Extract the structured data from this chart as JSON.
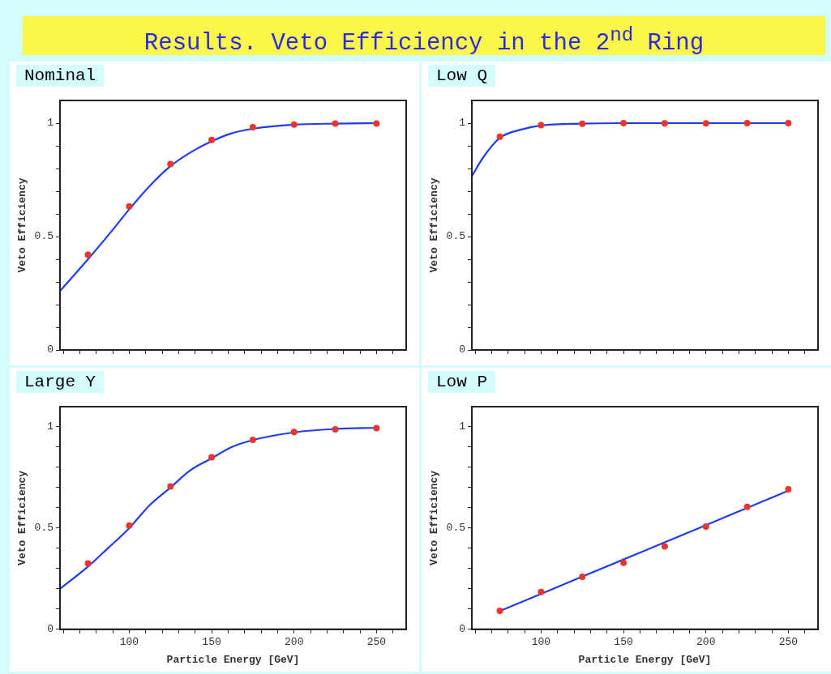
{
  "chart_data": [
    {
      "type": "scatter",
      "title": "Nominal",
      "ylabel": "Veto Efficiency",
      "annotations": [
        "Results. Veto Efficiency in the 2$^{nd}$ Ring"
      ],
      "xlim": [
        58,
        268
      ],
      "ylim": [
        0,
        1.1
      ],
      "tick_labels": "y",
      "grid": false,
      "legend": false,
      "xticks": [
        {
          "value": 60,
          "label": null
        },
        {
          "value": 70,
          "label": null
        },
        {
          "value": 80,
          "label": null
        },
        {
          "value": 90,
          "label": null
        },
        100,
        {
          "value": 110,
          "label": null
        },
        {
          "value": 120,
          "label": null
        },
        {
          "value": 130,
          "label": null
        },
        {
          "value": 140,
          "label": null
        },
        150,
        {
          "value": 160,
          "label": null
        },
        {
          "value": 170,
          "label": null
        },
        {
          "value": 180,
          "label": null
        },
        {
          "value": 190,
          "label": null
        },
        200,
        {
          "value": 210,
          "label": null
        },
        {
          "value": 220,
          "label": null
        },
        {
          "value": 230,
          "label": null
        },
        {
          "value": 240,
          "label": null
        },
        250,
        {
          "value": 260,
          "label": null
        }
      ],
      "yticks": [
        0,
        {
          "value": 0.1,
          "label": null
        },
        {
          "value": 0.2,
          "label": null
        },
        {
          "value": 0.3,
          "label": null
        },
        {
          "value": 0.4,
          "label": null
        },
        0.5,
        {
          "value": 0.6,
          "label": null
        },
        {
          "value": 0.7,
          "label": null
        },
        {
          "value": 0.8,
          "label": null
        },
        {
          "value": 0.9,
          "label": null
        },
        1
      ],
      "series": [
        {
          "type": "line",
          "color": "#1f3cf0",
          "marker": "none",
          "line_style": "solid",
          "x": [
            58,
            75,
            90,
            100,
            112,
            125,
            137,
            150,
            162,
            175,
            200,
            225,
            250
          ],
          "values": [
            0.26,
            0.4,
            0.53,
            0.62,
            0.72,
            0.81,
            0.87,
            0.92,
            0.955,
            0.975,
            0.993,
            0.998,
            1.0
          ]
        },
        {
          "type": "scatter",
          "color": "#e8352e",
          "marker": "circle",
          "x": [
            75,
            100,
            125,
            150,
            175,
            200,
            225,
            250
          ],
          "values": [
            0.42,
            0.633,
            0.82,
            0.926,
            0.982,
            0.994,
            0.998,
            0.998
          ]
        }
      ]
    },
    {
      "type": "scatter",
      "title": "Low Q",
      "ylabel": "Veto Efficiency",
      "xlim": [
        58,
        268
      ],
      "ylim": [
        0,
        1.1
      ],
      "tick_labels": "y",
      "grid": false,
      "legend": false,
      "xticks": [
        {
          "value": 60,
          "label": null
        },
        {
          "value": 70,
          "label": null
        },
        {
          "value": 80,
          "label": null
        },
        {
          "value": 90,
          "label": null
        },
        100,
        {
          "value": 110,
          "label": null
        },
        {
          "value": 120,
          "label": null
        },
        {
          "value": 130,
          "label": null
        },
        {
          "value": 140,
          "label": null
        },
        150,
        {
          "value": 160,
          "label": null
        },
        {
          "value": 170,
          "label": null
        },
        {
          "value": 180,
          "label": null
        },
        {
          "value": 190,
          "label": null
        },
        200,
        {
          "value": 210,
          "label": null
        },
        {
          "value": 220,
          "label": null
        },
        {
          "value": 230,
          "label": null
        },
        {
          "value": 240,
          "label": null
        },
        250,
        {
          "value": 260,
          "label": null
        }
      ],
      "yticks": [
        0,
        {
          "value": 0.1,
          "label": null
        },
        {
          "value": 0.2,
          "label": null
        },
        {
          "value": 0.3,
          "label": null
        },
        {
          "value": 0.4,
          "label": null
        },
        0.5,
        {
          "value": 0.6,
          "label": null
        },
        {
          "value": 0.7,
          "label": null
        },
        {
          "value": 0.8,
          "label": null
        },
        {
          "value": 0.9,
          "label": null
        },
        1
      ],
      "series": [
        {
          "type": "line",
          "color": "#1f3cf0",
          "marker": "none",
          "line_style": "solid",
          "x": [
            58,
            65,
            75,
            87,
            100,
            125,
            150,
            175,
            200,
            225,
            250
          ],
          "values": [
            0.766,
            0.85,
            0.935,
            0.97,
            0.99,
            0.998,
            1.0,
            1.0,
            1.0,
            1.0,
            1.0
          ]
        },
        {
          "type": "scatter",
          "color": "#e8352e",
          "marker": "circle",
          "x": [
            75,
            100,
            125,
            150,
            175,
            200,
            225,
            250
          ],
          "values": [
            0.94,
            0.991,
            0.997,
            1.0,
            0.999,
            0.999,
            1.0,
            1.0
          ]
        }
      ]
    },
    {
      "type": "scatter",
      "title": "Large Y",
      "xlabel": "Particle Energy [GeV]",
      "ylabel": "Veto Efficiency",
      "xlim": [
        58,
        268
      ],
      "ylim": [
        0,
        1.1
      ],
      "grid": false,
      "legend": false,
      "xticks": [
        {
          "value": 60,
          "label": null
        },
        {
          "value": 70,
          "label": null
        },
        {
          "value": 80,
          "label": null
        },
        {
          "value": 90,
          "label": null
        },
        100,
        {
          "value": 110,
          "label": null
        },
        {
          "value": 120,
          "label": null
        },
        {
          "value": 130,
          "label": null
        },
        {
          "value": 140,
          "label": null
        },
        150,
        {
          "value": 160,
          "label": null
        },
        {
          "value": 170,
          "label": null
        },
        {
          "value": 180,
          "label": null
        },
        {
          "value": 190,
          "label": null
        },
        200,
        {
          "value": 210,
          "label": null
        },
        {
          "value": 220,
          "label": null
        },
        {
          "value": 230,
          "label": null
        },
        {
          "value": 240,
          "label": null
        },
        250,
        {
          "value": 260,
          "label": null
        }
      ],
      "yticks": [
        0,
        {
          "value": 0.1,
          "label": null
        },
        {
          "value": 0.2,
          "label": null
        },
        {
          "value": 0.3,
          "label": null
        },
        {
          "value": 0.4,
          "label": null
        },
        0.5,
        {
          "value": 0.6,
          "label": null
        },
        {
          "value": 0.7,
          "label": null
        },
        {
          "value": 0.8,
          "label": null
        },
        {
          "value": 0.9,
          "label": null
        },
        1
      ],
      "series": [
        {
          "type": "line",
          "color": "#1f3cf0",
          "marker": "none",
          "line_style": "solid",
          "x": [
            58,
            75,
            87,
            100,
            112,
            125,
            137,
            150,
            162,
            175,
            200,
            225,
            250
          ],
          "values": [
            0.2,
            0.31,
            0.4,
            0.5,
            0.61,
            0.7,
            0.785,
            0.845,
            0.9,
            0.935,
            0.973,
            0.99,
            0.996
          ]
        },
        {
          "type": "scatter",
          "color": "#e8352e",
          "marker": "circle",
          "x": [
            75,
            100,
            125,
            150,
            175,
            200,
            225,
            250
          ],
          "values": [
            0.325,
            0.513,
            0.706,
            0.85,
            0.936,
            0.975,
            0.988,
            0.994
          ]
        }
      ]
    },
    {
      "type": "scatter",
      "title": "Low P",
      "xlabel": "Particle Energy [GeV]",
      "ylabel": "Veto Efficiency",
      "xlim": [
        58,
        268
      ],
      "ylim": [
        0,
        1.1
      ],
      "grid": false,
      "legend": false,
      "xticks": [
        {
          "value": 60,
          "label": null
        },
        {
          "value": 70,
          "label": null
        },
        {
          "value": 80,
          "label": null
        },
        {
          "value": 90,
          "label": null
        },
        100,
        {
          "value": 110,
          "label": null
        },
        {
          "value": 120,
          "label": null
        },
        {
          "value": 130,
          "label": null
        },
        {
          "value": 140,
          "label": null
        },
        150,
        {
          "value": 160,
          "label": null
        },
        {
          "value": 170,
          "label": null
        },
        {
          "value": 180,
          "label": null
        },
        {
          "value": 190,
          "label": null
        },
        200,
        {
          "value": 210,
          "label": null
        },
        {
          "value": 220,
          "label": null
        },
        {
          "value": 230,
          "label": null
        },
        {
          "value": 240,
          "label": null
        },
        250,
        {
          "value": 260,
          "label": null
        }
      ],
      "yticks": [
        0,
        {
          "value": 0.1,
          "label": null
        },
        {
          "value": 0.2,
          "label": null
        },
        {
          "value": 0.3,
          "label": null
        },
        {
          "value": 0.4,
          "label": null
        },
        0.5,
        {
          "value": 0.6,
          "label": null
        },
        {
          "value": 0.7,
          "label": null
        },
        {
          "value": 0.8,
          "label": null
        },
        {
          "value": 0.9,
          "label": null
        },
        1
      ],
      "series": [
        {
          "type": "line",
          "color": "#1f3cf0",
          "marker": "none",
          "line_style": "solid",
          "x": [
            75,
            125,
            200,
            250
          ],
          "values": [
            0.09,
            0.26,
            0.515,
            0.685
          ]
        },
        {
          "type": "scatter",
          "color": "#e8352e",
          "marker": "circle",
          "x": [
            75,
            100,
            125,
            150,
            175,
            200,
            225,
            250
          ],
          "values": [
            0.091,
            0.184,
            0.259,
            0.328,
            0.41,
            0.508,
            0.605,
            0.692
          ]
        }
      ]
    }
  ]
}
